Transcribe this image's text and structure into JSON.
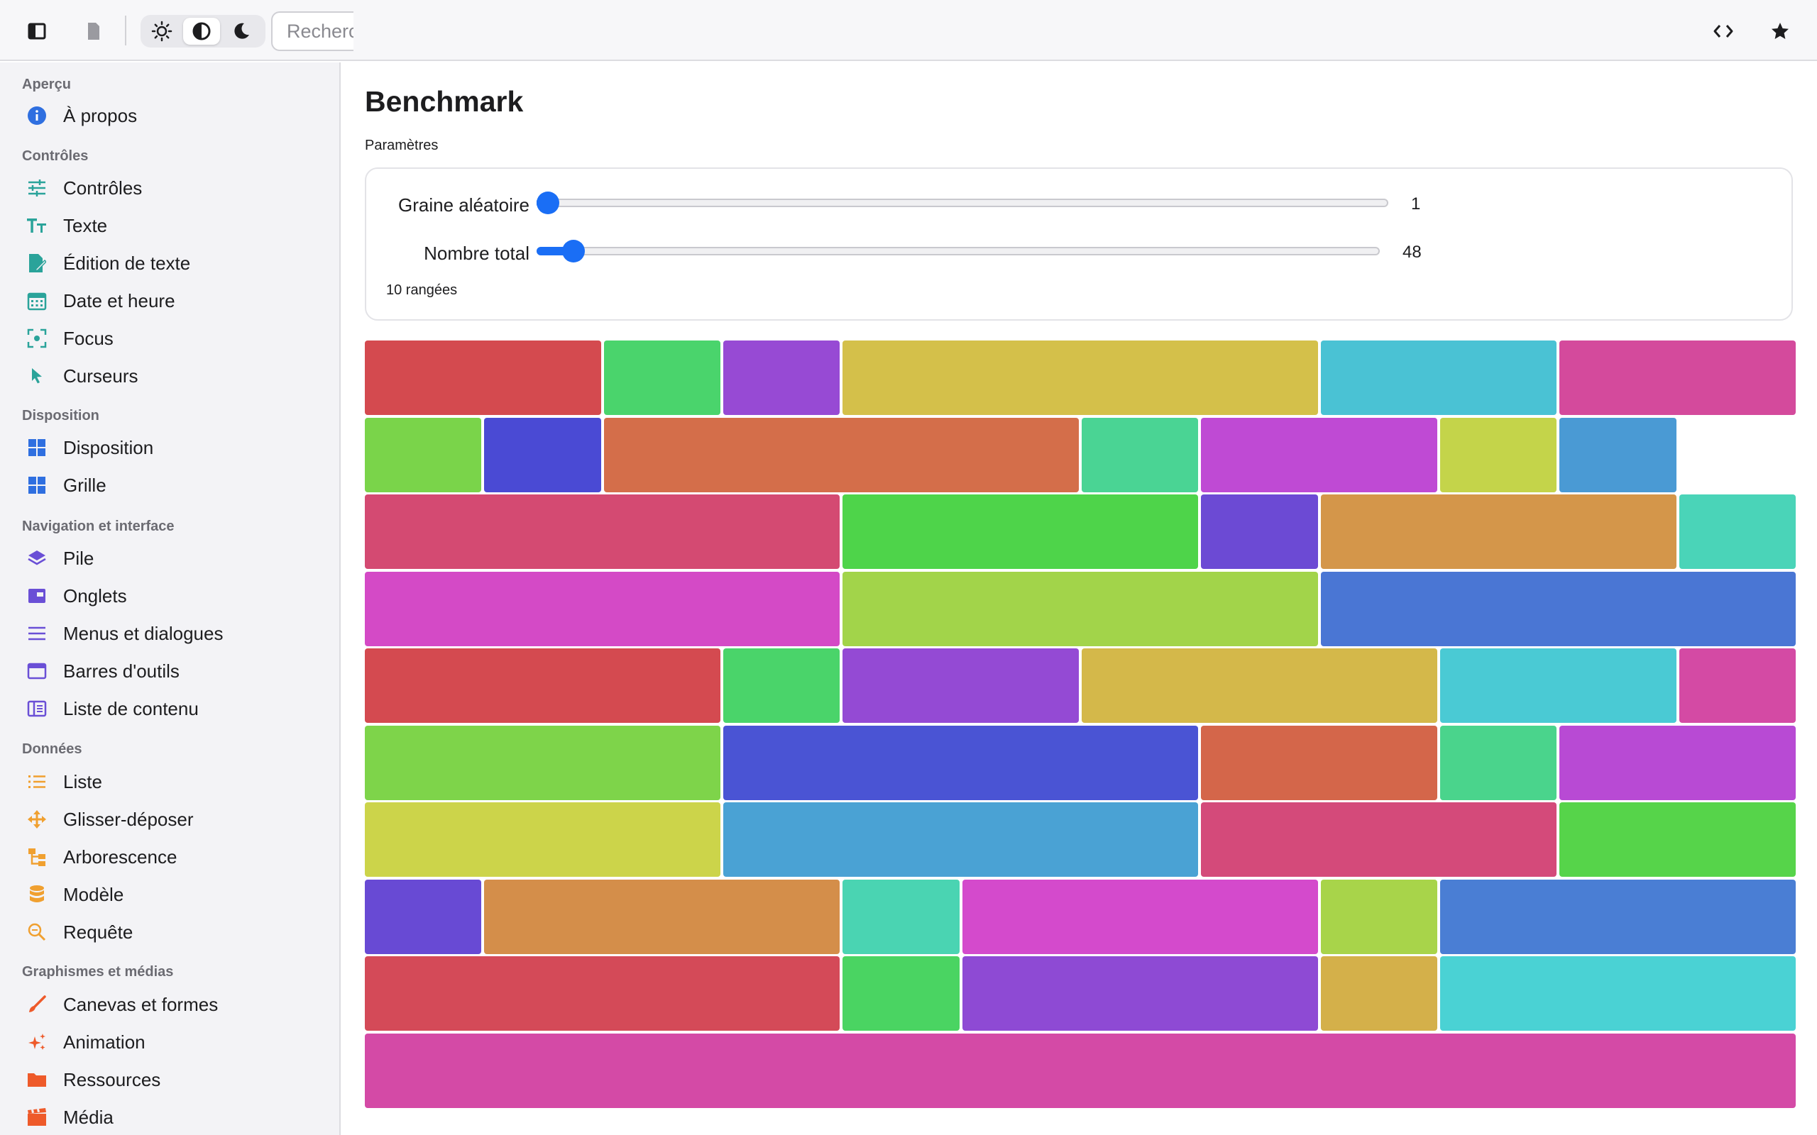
{
  "toolbar": {
    "search_placeholder": "Rechercher",
    "icons": [
      "sidebar-toggle-icon",
      "document-icon",
      "sun-icon",
      "contrast-icon",
      "moon-icon",
      "code-icon",
      "star-icon"
    ]
  },
  "sidebar": {
    "sections": [
      {
        "title": "Aperçu",
        "items": [
          {
            "label": "À propos",
            "icon": "info-icon",
            "color": "#2f6fe0"
          }
        ]
      },
      {
        "title": "Contrôles",
        "items": [
          {
            "label": "Contrôles",
            "icon": "sliders-icon",
            "color": "#2aa39a"
          },
          {
            "label": "Texte",
            "icon": "text-size-icon",
            "color": "#2aa39a"
          },
          {
            "label": "Édition de texte",
            "icon": "edit-document-icon",
            "color": "#2aa39a"
          },
          {
            "label": "Date et heure",
            "icon": "calendar-icon",
            "color": "#2aa39a"
          },
          {
            "label": "Focus",
            "icon": "focus-icon",
            "color": "#2aa39a"
          },
          {
            "label": "Curseurs",
            "icon": "cursor-icon",
            "color": "#2aa39a"
          }
        ]
      },
      {
        "title": "Disposition",
        "items": [
          {
            "label": "Disposition",
            "icon": "layout-icon",
            "color": "#2f6fe0"
          },
          {
            "label": "Grille",
            "icon": "grid-icon",
            "color": "#2f6fe0"
          }
        ]
      },
      {
        "title": "Navigation et interface",
        "items": [
          {
            "label": "Pile",
            "icon": "stack-icon",
            "color": "#6a4fd6"
          },
          {
            "label": "Onglets",
            "icon": "tabs-icon",
            "color": "#6a4fd6"
          },
          {
            "label": "Menus et dialogues",
            "icon": "menu-icon",
            "color": "#6a4fd6"
          },
          {
            "label": "Barres d'outils",
            "icon": "toolbar-icon",
            "color": "#6a4fd6"
          },
          {
            "label": "Liste de contenu",
            "icon": "content-list-icon",
            "color": "#6a4fd6"
          }
        ]
      },
      {
        "title": "Données",
        "items": [
          {
            "label": "Liste",
            "icon": "list-icon",
            "color": "#f0a030"
          },
          {
            "label": "Glisser-déposer",
            "icon": "drag-icon",
            "color": "#f0a030"
          },
          {
            "label": "Arborescence",
            "icon": "tree-icon",
            "color": "#f0a030"
          },
          {
            "label": "Modèle",
            "icon": "database-icon",
            "color": "#f0a030"
          },
          {
            "label": "Requête",
            "icon": "search-query-icon",
            "color": "#f0a030"
          }
        ]
      },
      {
        "title": "Graphismes et médias",
        "items": [
          {
            "label": "Canevas et formes",
            "icon": "brush-icon",
            "color": "#ee5a2a"
          },
          {
            "label": "Animation",
            "icon": "sparkles-icon",
            "color": "#ee5a2a"
          },
          {
            "label": "Ressources",
            "icon": "folder-icon",
            "color": "#ee5a2a"
          },
          {
            "label": "Média",
            "icon": "film-icon",
            "color": "#ee5a2a"
          }
        ]
      }
    ]
  },
  "main": {
    "title": "Benchmark",
    "params_label": "Paramètres",
    "sliders": [
      {
        "label": "Graine aléatoire",
        "value": "1",
        "fraction": 0.0
      },
      {
        "label": "Nombre total",
        "value": "48",
        "fraction": 0.03
      }
    ],
    "rows_count": "10 rangées",
    "grid": {
      "columns": 12,
      "rows": [
        [
          {
            "span": 2,
            "color": "#d44a4f"
          },
          {
            "span": 1,
            "color": "#4ad46c"
          },
          {
            "span": 1,
            "color": "#974ad4"
          },
          {
            "span": 4,
            "color": "#d4c04a"
          },
          {
            "span": 2,
            "color": "#4ac2d4"
          },
          {
            "span": 2,
            "color": "#d44a9c"
          }
        ],
        [
          {
            "span": 1,
            "color": "#7ad44a"
          },
          {
            "span": 1,
            "color": "#4a4ad4"
          },
          {
            "span": 4,
            "color": "#d46e4a"
          },
          {
            "span": 1,
            "color": "#4ad494"
          },
          {
            "span": 2,
            "color": "#bf4ad4"
          },
          {
            "span": 1,
            "color": "#c4d44a"
          },
          {
            "span": 1,
            "color": "#4a9ad4"
          }
        ],
        [
          {
            "span": 4,
            "color": "#d44a72"
          },
          {
            "span": 3,
            "color": "#4ed44a"
          },
          {
            "span": 1,
            "color": "#6c4ad4"
          },
          {
            "span": 3,
            "color": "#d4964a"
          },
          {
            "span": 1,
            "color": "#4ad4b8"
          }
        ],
        [
          {
            "span": 4,
            "color": "#d44ac6"
          },
          {
            "span": 4,
            "color": "#a2d44a"
          },
          {
            "span": 4,
            "color": "#4a76d4"
          }
        ],
        [
          {
            "span": 3,
            "color": "#d44a50"
          },
          {
            "span": 1,
            "color": "#4ad46a"
          },
          {
            "span": 2,
            "color": "#944ad4"
          },
          {
            "span": 3,
            "color": "#d4b84a"
          },
          {
            "span": 2,
            "color": "#4acad4"
          },
          {
            "span": 1,
            "color": "#d44aa4"
          }
        ],
        [
          {
            "span": 3,
            "color": "#7ed44a"
          },
          {
            "span": 4,
            "color": "#4a54d4"
          },
          {
            "span": 2,
            "color": "#d4664a"
          },
          {
            "span": 1,
            "color": "#4ad48c"
          },
          {
            "span": 2,
            "color": "#b84ad4"
          }
        ],
        [
          {
            "span": 3,
            "color": "#ccd44a"
          },
          {
            "span": 4,
            "color": "#4aa2d4"
          },
          {
            "span": 3,
            "color": "#d44a7a"
          },
          {
            "span": 2,
            "color": "#56d44a"
          }
        ],
        [
          {
            "span": 1,
            "color": "#684ad4"
          },
          {
            "span": 3,
            "color": "#d48e4a"
          },
          {
            "span": 1,
            "color": "#4ad4b2"
          },
          {
            "span": 3,
            "color": "#d44acc"
          },
          {
            "span": 1,
            "color": "#a8d44a"
          },
          {
            "span": 3,
            "color": "#4a7ed4"
          }
        ],
        [
          {
            "span": 4,
            "color": "#d44a58"
          },
          {
            "span": 1,
            "color": "#4ad462"
          },
          {
            "span": 3,
            "color": "#8e4ad4"
          },
          {
            "span": 1,
            "color": "#d4b04a"
          },
          {
            "span": 3,
            "color": "#4ad2d4"
          }
        ],
        [
          {
            "span": 12,
            "color": "#d44aa6"
          }
        ]
      ]
    }
  }
}
